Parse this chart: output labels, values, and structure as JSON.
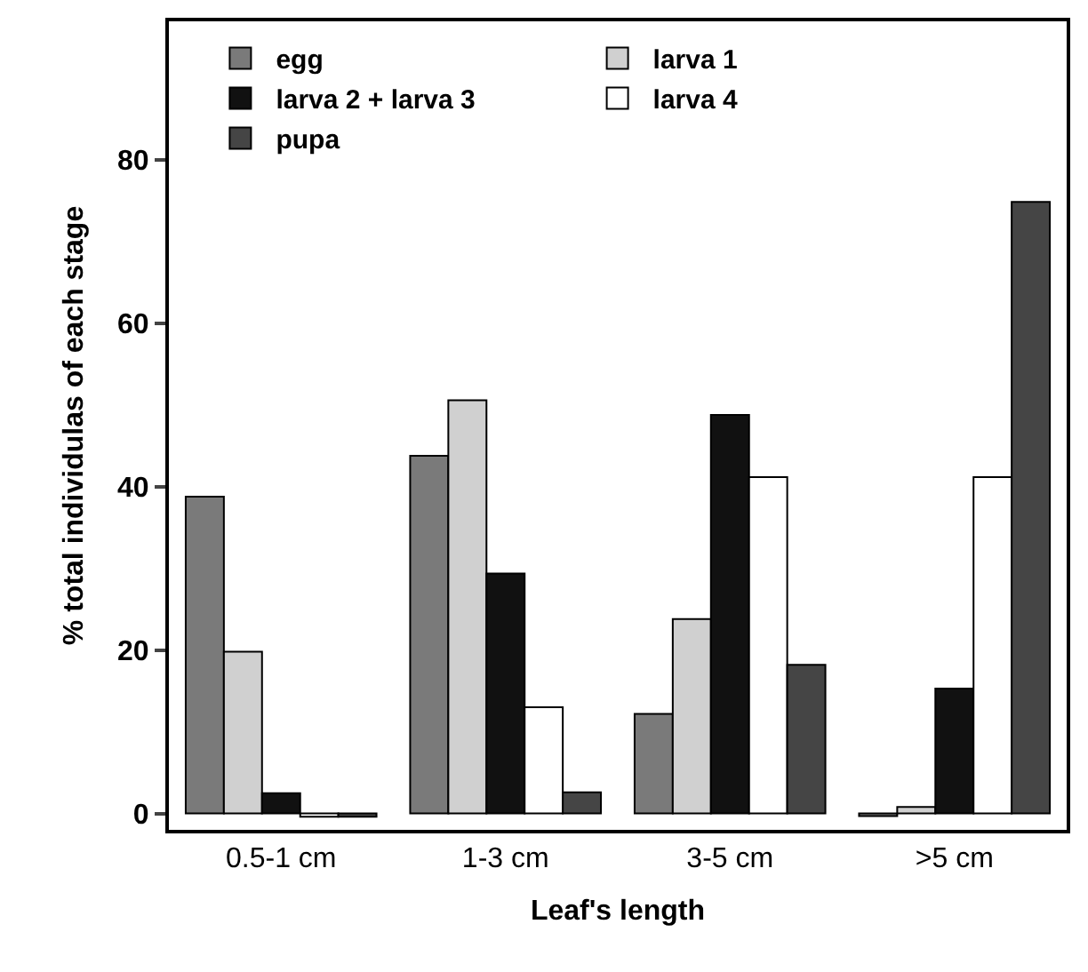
{
  "chart_data": {
    "type": "bar",
    "xlabel": "Leaf's length",
    "ylabel": "% total individulas of each stage",
    "categories": [
      "0.5-1 cm",
      "1-3 cm",
      "3-5 cm",
      ">5 cm"
    ],
    "series": [
      {
        "name": "egg",
        "color": "#7a7a7a",
        "values": [
          38.8,
          43.8,
          12.2,
          -0.3
        ]
      },
      {
        "name": "larva 1",
        "color": "#d0d0d0",
        "values": [
          19.8,
          50.6,
          23.8,
          0.8
        ]
      },
      {
        "name": "larva 2 + larva 3",
        "color": "#111111",
        "values": [
          2.5,
          29.4,
          48.8,
          15.3
        ]
      },
      {
        "name": "larva 4",
        "color": "#ffffff",
        "values": [
          -0.4,
          13,
          41.2,
          41.2
        ]
      },
      {
        "name": "pupa",
        "color": "#454545",
        "values": [
          -0.4,
          2.6,
          18.2,
          74.9
        ]
      }
    ],
    "ylim": [
      -2,
      97
    ],
    "yticks": [
      0,
      20,
      40,
      60,
      80
    ],
    "legend": "top left"
  }
}
